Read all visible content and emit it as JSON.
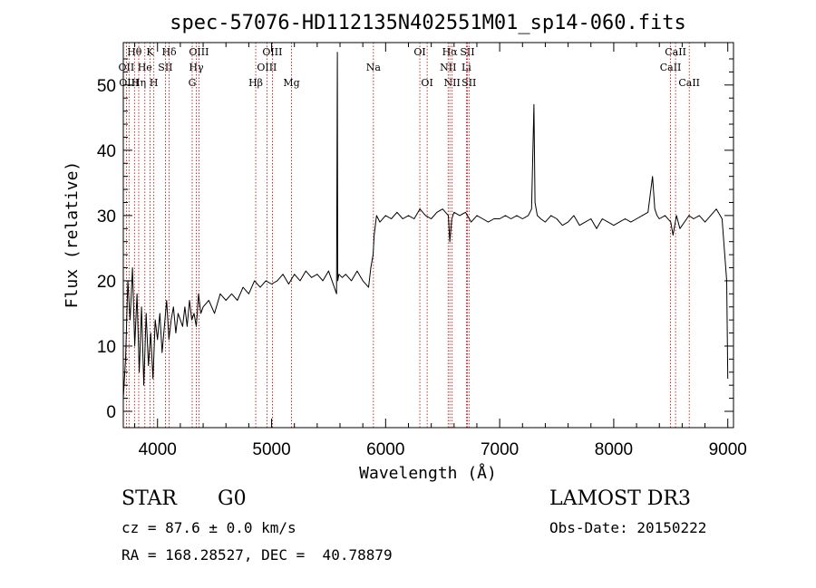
{
  "chart_data": {
    "type": "line",
    "title": "spec-57076-HD112135N402551M01_sp14-060.fits",
    "xlabel": "Wavelength (Å)",
    "ylabel": "Flux (relative)",
    "xlim": [
      3700,
      9050
    ],
    "ylim": [
      -2.5,
      56.5
    ],
    "xticks": [
      4000,
      5000,
      6000,
      7000,
      8000,
      9000
    ],
    "yticks": [
      0,
      10,
      20,
      30,
      40,
      50
    ],
    "series": [
      {
        "name": "spectrum",
        "x": [
          3700,
          3720,
          3740,
          3760,
          3780,
          3800,
          3820,
          3840,
          3860,
          3880,
          3900,
          3920,
          3940,
          3960,
          3980,
          4000,
          4020,
          4040,
          4060,
          4080,
          4100,
          4120,
          4140,
          4160,
          4180,
          4200,
          4220,
          4240,
          4260,
          4280,
          4300,
          4320,
          4340,
          4360,
          4380,
          4400,
          4450,
          4500,
          4550,
          4600,
          4650,
          4700,
          4750,
          4800,
          4850,
          4900,
          4950,
          5000,
          5050,
          5100,
          5150,
          5200,
          5250,
          5300,
          5350,
          5400,
          5450,
          5500,
          5550,
          5570,
          5577,
          5580,
          5590,
          5620,
          5650,
          5700,
          5750,
          5800,
          5850,
          5870,
          5890,
          5900,
          5920,
          5950,
          6000,
          6050,
          6100,
          6150,
          6200,
          6250,
          6300,
          6350,
          6400,
          6450,
          6500,
          6550,
          6563,
          6580,
          6600,
          6650,
          6700,
          6750,
          6800,
          6850,
          6900,
          6950,
          7000,
          7050,
          7100,
          7150,
          7200,
          7250,
          7280,
          7300,
          7310,
          7330,
          7360,
          7400,
          7450,
          7500,
          7550,
          7600,
          7650,
          7700,
          7750,
          7800,
          7850,
          7900,
          7950,
          8000,
          8050,
          8100,
          8150,
          8200,
          8250,
          8300,
          8340,
          8360,
          8380,
          8400,
          8450,
          8500,
          8520,
          8550,
          8580,
          8620,
          8660,
          8700,
          8750,
          8800,
          8850,
          8900,
          8950,
          8990,
          9000
        ],
        "values": [
          2,
          8,
          20,
          14,
          22,
          10,
          18,
          6,
          16,
          4,
          15,
          7,
          12,
          5,
          14,
          11,
          15,
          9,
          13,
          17,
          11,
          14,
          16,
          12,
          15,
          14,
          13,
          16,
          13,
          17,
          14,
          15,
          13,
          18,
          15,
          16,
          17,
          15,
          18,
          17,
          18,
          17,
          19,
          18,
          20,
          19,
          20,
          19.5,
          20,
          21,
          19.5,
          21,
          20,
          21.5,
          20.5,
          21,
          20,
          21.5,
          19,
          18,
          55,
          20,
          21,
          20.5,
          21,
          20,
          21.5,
          20,
          19,
          22,
          24,
          27,
          30,
          29,
          30,
          29.5,
          30.5,
          29.5,
          30,
          29.5,
          31,
          30,
          29.5,
          30.5,
          31,
          30,
          26,
          29.5,
          30.5,
          30,
          30.5,
          29,
          30,
          29.5,
          29,
          29.5,
          29.5,
          30,
          29.5,
          30,
          29.5,
          30,
          31,
          47,
          32,
          30,
          29.5,
          29,
          30,
          29.5,
          28.5,
          29,
          30,
          28.5,
          29,
          29.5,
          28,
          29.5,
          29,
          28.5,
          29,
          29.5,
          29,
          29.5,
          30,
          30.5,
          36,
          31,
          30,
          29.5,
          30,
          29,
          27,
          30,
          28,
          29,
          30,
          29.5,
          30,
          29,
          30,
          31,
          29.5,
          20,
          5
        ]
      }
    ],
    "line_markers": [
      {
        "label": "Hθ",
        "x": 3798,
        "row": 1
      },
      {
        "label": "K",
        "x": 3934,
        "row": 1
      },
      {
        "label": "Hδ",
        "x": 4102,
        "row": 1
      },
      {
        "label": "OIII",
        "x": 4363,
        "row": 1
      },
      {
        "label": "OIII",
        "x": 5007,
        "row": 1
      },
      {
        "label": "OI",
        "x": 6300,
        "row": 1
      },
      {
        "label": "Hα",
        "x": 6563,
        "row": 1
      },
      {
        "label": "SII",
        "x": 6717,
        "row": 1
      },
      {
        "label": "CaII",
        "x": 8542,
        "row": 1
      },
      {
        "label": "OII",
        "x": 3727,
        "row": 2
      },
      {
        "label": "He",
        "x": 3889,
        "row": 2
      },
      {
        "label": "SII",
        "x": 4069,
        "row": 2
      },
      {
        "label": "Hγ",
        "x": 4340,
        "row": 2
      },
      {
        "label": "OIII",
        "x": 4959,
        "row": 2
      },
      {
        "label": "Na",
        "x": 5893,
        "row": 2
      },
      {
        "label": "NII",
        "x": 6548,
        "row": 2
      },
      {
        "label": "Li",
        "x": 6708,
        "row": 2
      },
      {
        "label": "CaII",
        "x": 8498,
        "row": 2
      },
      {
        "label": "OIII",
        "x": 3750,
        "row": 3
      },
      {
        "label": "Hη",
        "x": 3835,
        "row": 3
      },
      {
        "label": "H",
        "x": 3968,
        "row": 3
      },
      {
        "label": "G",
        "x": 4304,
        "row": 3
      },
      {
        "label": "Hβ",
        "x": 4861,
        "row": 3
      },
      {
        "label": "Mg",
        "x": 5175,
        "row": 3
      },
      {
        "label": "OI",
        "x": 6364,
        "row": 3
      },
      {
        "label": "NII",
        "x": 6583,
        "row": 3
      },
      {
        "label": "SII",
        "x": 6731,
        "row": 3
      },
      {
        "label": "CaII",
        "x": 8662,
        "row": 3
      }
    ]
  },
  "info": {
    "object_class": "STAR",
    "subclass": "G0",
    "survey": "LAMOST DR3",
    "redshift": "cz = 87.6 ± 0.0 km/s",
    "obs_date": "Obs-Date: 20150222",
    "coords": "RA = 168.28527, DEC =  40.78879"
  }
}
